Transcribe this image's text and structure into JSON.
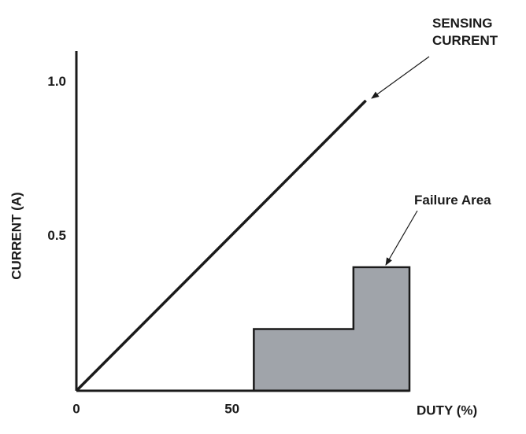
{
  "chart_data": {
    "type": "line",
    "xlabel": "DUTY (%)",
    "ylabel": "CURRENT (A)",
    "xlim": [
      0,
      107
    ],
    "ylim": [
      0,
      1.1
    ],
    "xticks": [
      0,
      50
    ],
    "yticks": [
      0.5,
      {
        "value": 1,
        "label": "1.0"
      }
    ],
    "series": [
      {
        "name": "SENSING CURRENT",
        "color": "#1a1a1a",
        "x": [
          0,
          93
        ],
        "values": [
          0,
          0.94
        ]
      }
    ],
    "regions": [
      {
        "name": "Failure Area",
        "color": "#a0a4aa",
        "x": [
          57,
          57,
          89,
          89,
          107,
          107
        ],
        "values": [
          0,
          0.2,
          0.2,
          0.4,
          0.4,
          0
        ]
      }
    ]
  }
}
